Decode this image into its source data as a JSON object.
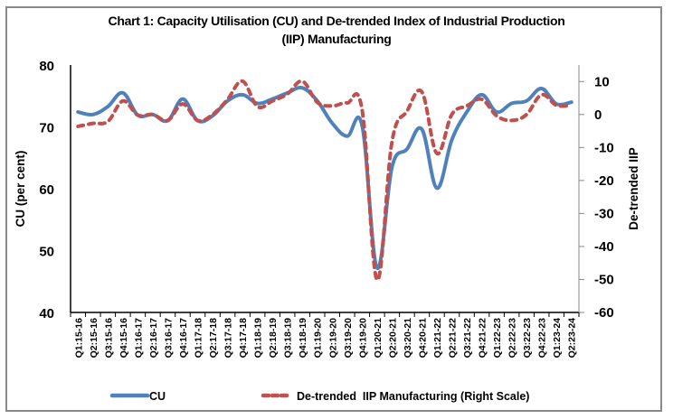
{
  "chart_data": {
    "type": "line",
    "title_line1": "Chart 1: Capacity Utilisation (CU) and De-trended Index of Industrial Production",
    "title_line2": "(IIP) Manufacturing",
    "xlabel": "",
    "ylabel": "CU (per cent)",
    "y2label": "De-trended IIP",
    "ylim": [
      40,
      80
    ],
    "yticks": [
      40,
      50,
      60,
      70,
      80
    ],
    "y2lim": [
      -60,
      15
    ],
    "y2ticks": [
      -60,
      -50,
      -40,
      -30,
      -20,
      -10,
      0,
      10
    ],
    "grid": false,
    "legend_position": "bottom",
    "categories": [
      "Q1:15-16",
      "Q2:15-16",
      "Q3:15-16",
      "Q4:15-16",
      "Q1:16-17",
      "Q2:16-17",
      "Q3:16-17",
      "Q4:16-17",
      "Q1:17-18",
      "Q2:17-18",
      "Q3:17-18",
      "Q4:17-18",
      "Q1:18-19",
      "Q2:18-19",
      "Q3:18-19",
      "Q4:18-19",
      "Q1:19-20",
      "Q2:19-20",
      "Q3:19-20",
      "Q4:19-20",
      "Q1:20-21",
      "Q2:20-21",
      "Q3:20-21",
      "Q4:20-21",
      "Q1:21-22",
      "Q2:21-22",
      "Q3:21-22",
      "Q4:21-22",
      "Q1:22-23",
      "Q2:22-23",
      "Q3:22-23",
      "Q4:22-23",
      "Q1:23-24",
      "Q2:23-24"
    ],
    "series": [
      {
        "name": "CU",
        "axis": "left",
        "style": "solid",
        "color": "#4f81bd",
        "values": [
          72.4,
          72.0,
          73.3,
          75.5,
          71.9,
          72.0,
          71.0,
          74.5,
          71.0,
          71.8,
          74.2,
          75.2,
          73.8,
          74.5,
          75.5,
          76.3,
          74.2,
          70.6,
          68.5,
          70.2,
          47.2,
          63.5,
          66.4,
          69.6,
          60.1,
          67.9,
          72.4,
          75.2,
          72.4,
          73.8,
          74.2,
          76.2,
          73.7,
          74.0
        ]
      },
      {
        "name": "De-trended  IIP Manufacturing (Right Scale)",
        "axis": "right",
        "style": "dashed",
        "color": "#c0504d",
        "values": [
          -3.6,
          -2.7,
          -2.1,
          4.1,
          -0.2,
          0.0,
          -1.8,
          3.2,
          -1.8,
          0.0,
          4.6,
          10.1,
          2.4,
          4.1,
          6.2,
          10.1,
          3.7,
          2.6,
          3.5,
          1.4,
          -50.1,
          -8.2,
          1.0,
          6.8,
          -11.8,
          0.0,
          2.6,
          4.6,
          -0.4,
          -1.8,
          0.0,
          6.0,
          2.8,
          2.8
        ]
      }
    ]
  }
}
